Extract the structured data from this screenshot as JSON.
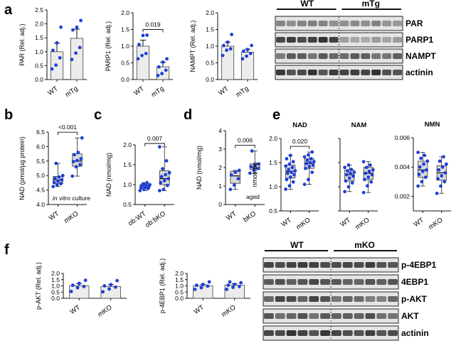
{
  "figure": {
    "panel_labels": [
      "a",
      "b",
      "c",
      "d",
      "e",
      "f"
    ],
    "colors": {
      "point": "#1f3fd6",
      "box": "#d9d9d9",
      "axis": "#111111",
      "blot_frame": "#222222"
    }
  },
  "chart_data": [
    {
      "id": "a1",
      "type": "bar",
      "ylabel": "PAR (Rel. adj.)",
      "categories": [
        "WT",
        "mTg"
      ],
      "values": [
        1.0,
        1.48
      ],
      "errors": [
        0.3,
        0.33
      ],
      "ylim": [
        0,
        2.5
      ],
      "yticks": [
        "0.0",
        "0.5",
        "1.0",
        "1.5",
        "2.0",
        "2.5"
      ],
      "points": [
        [
          0.38,
          0.52,
          0.78,
          1.05,
          1.32,
          1.88
        ],
        [
          0.72,
          0.95,
          1.15,
          1.78,
          1.88,
          2.12
        ]
      ]
    },
    {
      "id": "a2",
      "type": "bar",
      "ylabel": "PARP1 (Rel. adj.)",
      "categories": [
        "WT",
        "mTg"
      ],
      "values": [
        1.0,
        0.38
      ],
      "errors": [
        0.18,
        0.14
      ],
      "ylim": [
        0,
        2.0
      ],
      "yticks": [
        "0.0",
        "0.5",
        "1.0",
        "1.5",
        "2.0"
      ],
      "points": [
        [
          0.62,
          0.72,
          0.78,
          1.05,
          1.32,
          1.33
        ],
        [
          0.12,
          0.18,
          0.28,
          0.38,
          0.52,
          0.62
        ]
      ],
      "significance": "0.019"
    },
    {
      "id": "a3",
      "type": "bar",
      "ylabel": "NAMPT (Rel. adj.)",
      "categories": [
        "WT",
        "mTg"
      ],
      "values": [
        1.0,
        0.82
      ],
      "errors": [
        0.12,
        0.09
      ],
      "ylim": [
        0,
        2.0
      ],
      "yticks": [
        "0.0",
        "0.5",
        "1.0",
        "1.5",
        "2.0"
      ],
      "points": [
        [
          0.72,
          0.88,
          0.92,
          1.02,
          1.12,
          1.35
        ],
        [
          0.62,
          0.7,
          0.78,
          0.85,
          0.9,
          1.02
        ]
      ]
    },
    {
      "id": "b",
      "type": "box",
      "ylabel": "NAD (pmol/µg protein)",
      "categories": [
        "WT",
        "mKO"
      ],
      "ylim": [
        4.0,
        6.5
      ],
      "yticks": [
        "4.0",
        "4.5",
        "5.0",
        "5.5",
        "6.0",
        "6.5"
      ],
      "boxes": [
        {
          "min": 4.62,
          "q1": 4.72,
          "median": 4.85,
          "q3": 4.97,
          "max": 5.42
        },
        {
          "min": 4.98,
          "q1": 5.32,
          "median": 5.5,
          "q3": 5.75,
          "max": 6.3
        }
      ],
      "points": [
        [
          4.62,
          4.68,
          4.72,
          4.76,
          4.8,
          4.85,
          4.9,
          4.95,
          5.0,
          5.42
        ],
        [
          4.98,
          5.3,
          5.38,
          5.48,
          5.52,
          5.58,
          5.72,
          5.8,
          6.3
        ]
      ],
      "significance": "<0.001",
      "annotation": "in vitro",
      "annotation_suffix": "culture"
    },
    {
      "id": "c",
      "type": "box",
      "ylabel": "NAD (nmol/mg)",
      "categories": [
        "ob:WT",
        "ob:bKO"
      ],
      "ylim": [
        0.5,
        2.0
      ],
      "yticks": [
        "0.5",
        "1.0",
        "1.5",
        "2.0"
      ],
      "boxes": [
        {
          "min": 0.85,
          "q1": 0.9,
          "median": 0.95,
          "q3": 1.0,
          "max": 1.05
        },
        {
          "min": 0.85,
          "q1": 1.0,
          "median": 1.15,
          "q3": 1.35,
          "max": 1.95
        }
      ],
      "points": [
        [
          0.85,
          0.88,
          0.9,
          0.92,
          0.94,
          0.95,
          0.97,
          0.98,
          1.0,
          1.02,
          1.05
        ],
        [
          0.85,
          0.88,
          0.98,
          1.05,
          1.1,
          1.15,
          1.2,
          1.25,
          1.3,
          1.4,
          1.6,
          1.95
        ]
      ],
      "significance": "0.007"
    },
    {
      "id": "d",
      "type": "box",
      "ylabel": "NAD (nmol/mg)",
      "categories": [
        "WT",
        "bKO"
      ],
      "ylim": [
        0,
        4
      ],
      "yticks": [
        "0",
        "1",
        "2",
        "3",
        "4"
      ],
      "boxes": [
        {
          "min": 0.82,
          "q1": 1.15,
          "median": 1.55,
          "q3": 1.8,
          "max": 1.85
        },
        {
          "min": 1.7,
          "q1": 1.9,
          "median": 2.0,
          "q3": 2.2,
          "max": 2.9
        }
      ],
      "points": [
        [
          0.82,
          1.05,
          1.4,
          1.6,
          1.75,
          1.85
        ],
        [
          1.7,
          1.88,
          1.95,
          2.05,
          2.12,
          2.2,
          2.9
        ]
      ],
      "significance": "0.006",
      "annotation": "aged"
    },
    {
      "id": "e1",
      "type": "box",
      "title": "NAD",
      "ylabel": "nmol/mg",
      "categories": [
        "WT",
        "mKO"
      ],
      "ylim": [
        0.5,
        2.0
      ],
      "yticks": [
        "0.5",
        "1.0",
        "1.5",
        "2.0"
      ],
      "boxes": [
        {
          "min": 0.95,
          "q1": 1.18,
          "median": 1.32,
          "q3": 1.45,
          "max": 1.65
        },
        {
          "min": 1.05,
          "q1": 1.38,
          "median": 1.48,
          "q3": 1.58,
          "max": 1.72
        }
      ],
      "points": [
        [
          0.95,
          1.02,
          1.1,
          1.15,
          1.2,
          1.25,
          1.28,
          1.3,
          1.33,
          1.36,
          1.4,
          1.43,
          1.47,
          1.52,
          1.58,
          1.65
        ],
        [
          1.05,
          1.15,
          1.3,
          1.38,
          1.42,
          1.45,
          1.48,
          1.5,
          1.52,
          1.55,
          1.58,
          1.62,
          1.66,
          1.72
        ]
      ],
      "significance": "0.020"
    },
    {
      "id": "e2",
      "type": "box",
      "title": "NAM",
      "ylabel": "",
      "categories": [
        "WT",
        "mKO"
      ],
      "ylim": [
        0.5,
        2.0
      ],
      "yticks": [],
      "boxes": [
        {
          "min": 0.9,
          "q1": 1.12,
          "median": 1.25,
          "q3": 1.35,
          "max": 1.45
        },
        {
          "min": 0.88,
          "q1": 1.15,
          "median": 1.28,
          "q3": 1.4,
          "max": 1.52
        }
      ],
      "points": [
        [
          0.9,
          1.0,
          1.08,
          1.12,
          1.18,
          1.22,
          1.25,
          1.28,
          1.3,
          1.33,
          1.36,
          1.4,
          1.45
        ],
        [
          0.88,
          1.02,
          1.1,
          1.15,
          1.2,
          1.25,
          1.28,
          1.32,
          1.35,
          1.4,
          1.45,
          1.52
        ]
      ]
    },
    {
      "id": "e3",
      "type": "box",
      "title": "NMN",
      "ylabel": "",
      "categories": [
        "WT",
        "mKO"
      ],
      "ylim": [
        0.001,
        0.006
      ],
      "yticks": [
        "0.002",
        "0.004",
        "0.006"
      ],
      "boxes": [
        {
          "min": 0.0027,
          "q1": 0.0033,
          "median": 0.0038,
          "q3": 0.0044,
          "max": 0.005
        },
        {
          "min": 0.0022,
          "q1": 0.0031,
          "median": 0.0036,
          "q3": 0.0041,
          "max": 0.0047
        }
      ],
      "points": [
        [
          0.0027,
          0.003,
          0.0033,
          0.0035,
          0.0037,
          0.0038,
          0.004,
          0.0042,
          0.0044,
          0.0046,
          0.0048,
          0.005
        ],
        [
          0.0022,
          0.0027,
          0.003,
          0.0032,
          0.0034,
          0.0036,
          0.0038,
          0.004,
          0.0042,
          0.0044,
          0.0047
        ]
      ]
    },
    {
      "id": "f1",
      "type": "bar",
      "ylabel": "p-AKT (Rel. adj.)",
      "categories": [
        "WT",
        "mKO"
      ],
      "values": [
        1.0,
        0.95
      ],
      "errors": [
        0.17,
        0.15
      ],
      "ylim": [
        0,
        2.0
      ],
      "yticks": [
        "0.0",
        "0.5",
        "1.0",
        "1.5",
        "2.0"
      ],
      "points": [
        [
          0.55,
          0.85,
          0.95,
          1.05,
          1.2,
          1.45
        ],
        [
          0.52,
          0.75,
          0.9,
          1.0,
          1.1,
          1.42
        ]
      ]
    },
    {
      "id": "f2",
      "type": "bar",
      "ylabel": "p-4EBP1 (Rel. adj.)",
      "categories": [
        "WT",
        "mKO"
      ],
      "values": [
        1.0,
        1.05
      ],
      "errors": [
        0.12,
        0.12
      ],
      "ylim": [
        0,
        2.0
      ],
      "yticks": [
        "0.0",
        "0.5",
        "1.0",
        "1.5",
        "2.0"
      ],
      "points": [
        [
          0.72,
          0.85,
          0.98,
          1.05,
          1.12,
          1.32
        ],
        [
          0.72,
          0.88,
          0.95,
          1.05,
          1.12,
          1.25,
          1.32
        ]
      ]
    }
  ],
  "blots": {
    "a": {
      "group_left": "WT",
      "group_right": "mTg",
      "bands": [
        "PAR",
        "PARP1",
        "NAMPT",
        "actinin"
      ]
    },
    "f": {
      "group_left": "WT",
      "group_right": "mKO",
      "bands": [
        "p-4EBP1",
        "4EBP1",
        "p-AKT",
        "AKT",
        "actinin"
      ]
    }
  }
}
